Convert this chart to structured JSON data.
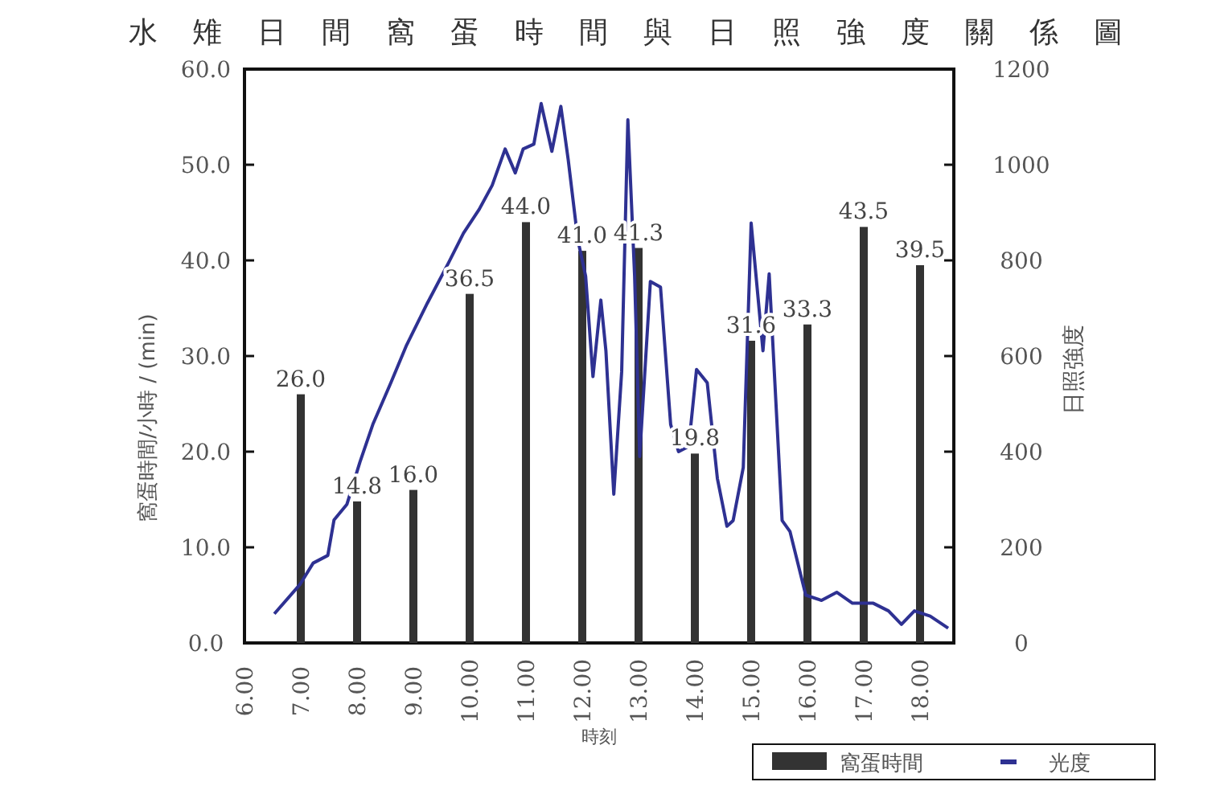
{
  "chart_data": {
    "type": "bar",
    "title": "水雉日間窩蛋時間與日照強度關係圖",
    "xlabel": "時刻",
    "ylabel": "窩蛋時間/小時 / (min)",
    "y2label": "日照強度",
    "xlim": [
      6,
      18.6
    ],
    "xticks": [
      {
        "value": 6,
        "label": "6.00"
      },
      {
        "value": 7,
        "label": "7.00"
      },
      {
        "value": 8,
        "label": "8.00"
      },
      {
        "value": 9,
        "label": "9.00"
      },
      {
        "value": 10,
        "label": "10.00"
      },
      {
        "value": 11,
        "label": "11.00"
      },
      {
        "value": 12,
        "label": "12.00"
      },
      {
        "value": 13,
        "label": "13.00"
      },
      {
        "value": 14,
        "label": "14.00"
      },
      {
        "value": 15,
        "label": "15.00"
      },
      {
        "value": 16,
        "label": "16.00"
      },
      {
        "value": 17,
        "label": "17.00"
      },
      {
        "value": 18,
        "label": "18.00"
      }
    ],
    "ylim": [
      0,
      60
    ],
    "yticks": [
      {
        "value": 0,
        "label": "0.0"
      },
      {
        "value": 10,
        "label": "10.0"
      },
      {
        "value": 20,
        "label": "20.0"
      },
      {
        "value": 30,
        "label": "30.0"
      },
      {
        "value": 40,
        "label": "40.0"
      },
      {
        "value": 50,
        "label": "50.0"
      },
      {
        "value": 60,
        "label": "60.0"
      }
    ],
    "y2lim": [
      0,
      1200
    ],
    "y2ticks": [
      0,
      200,
      400,
      600,
      800,
      1000,
      1200
    ],
    "legend": "bottom",
    "series": [
      {
        "name": "窩蛋時間",
        "color": "#333333",
        "x": [
          7,
          8,
          9,
          10,
          11,
          12,
          13,
          14,
          15,
          16,
          17,
          18
        ],
        "values": [
          26.0,
          14.8,
          16.0,
          36.5,
          44.0,
          41.0,
          41.3,
          19.8,
          31.6,
          33.3,
          43.5,
          39.5
        ],
        "value_labels": [
          "26.0",
          "14.8",
          "16.0",
          "36.5",
          "44.0",
          "41.0",
          "41.3",
          "19.8",
          "31.6",
          "33.3",
          "43.5",
          "39.5"
        ]
      },
      {
        "name": "光度",
        "type": "line",
        "axis": "y2",
        "color": "#2e3192",
        "x": [
          6.53,
          6.99,
          7.22,
          7.48,
          7.59,
          7.82,
          8.05,
          8.28,
          8.6,
          8.88,
          9.25,
          9.62,
          9.89,
          10.17,
          10.4,
          10.63,
          10.81,
          10.95,
          11.14,
          11.27,
          11.46,
          11.62,
          11.75,
          11.92,
          12.06,
          12.19,
          12.33,
          12.42,
          12.56,
          12.7,
          12.81,
          12.93,
          13.02,
          13.21,
          13.39,
          13.57,
          13.71,
          13.89,
          14.03,
          14.22,
          14.4,
          14.57,
          14.68,
          14.86,
          15.0,
          15.21,
          15.32,
          15.55,
          15.69,
          15.97,
          16.25,
          16.52,
          16.8,
          17.17,
          17.44,
          17.67,
          17.9,
          18.18,
          18.5
        ],
        "values": [
          61,
          123,
          167,
          183,
          257,
          290,
          378,
          457,
          544,
          623,
          711,
          794,
          857,
          907,
          957,
          1033,
          983,
          1033,
          1043,
          1128,
          1028,
          1122,
          1011,
          844,
          767,
          557,
          717,
          611,
          311,
          567,
          1094,
          767,
          390,
          756,
          744,
          457,
          400,
          411,
          572,
          544,
          344,
          244,
          256,
          367,
          878,
          611,
          772,
          256,
          233,
          100,
          89,
          106,
          83,
          83,
          67,
          39,
          67,
          56,
          31
        ]
      }
    ]
  }
}
